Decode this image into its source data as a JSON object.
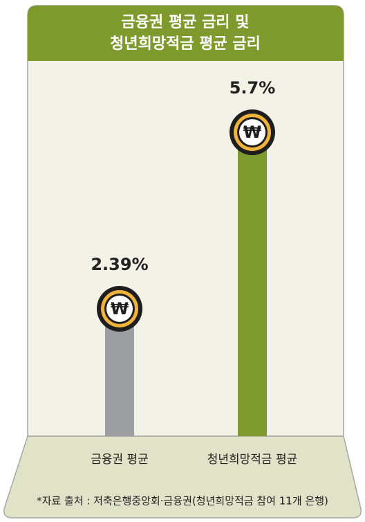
{
  "chart_data": {
    "type": "bar",
    "title": [
      "금융권 평균 금리 및",
      "청년희망적금 평균 금리"
    ],
    "categories": [
      "금융권 평균",
      "청년희망적금 평균"
    ],
    "values": [
      2.39,
      5.7
    ],
    "value_labels": [
      "2.39%",
      "5.7%"
    ],
    "colors": [
      "#9c9ea2",
      "#7f9b2f"
    ],
    "icon_label": "₩",
    "source": "*자료 출처 : 저축은행중앙회·금융권(청년희망적금 참여 11개 은행)"
  }
}
